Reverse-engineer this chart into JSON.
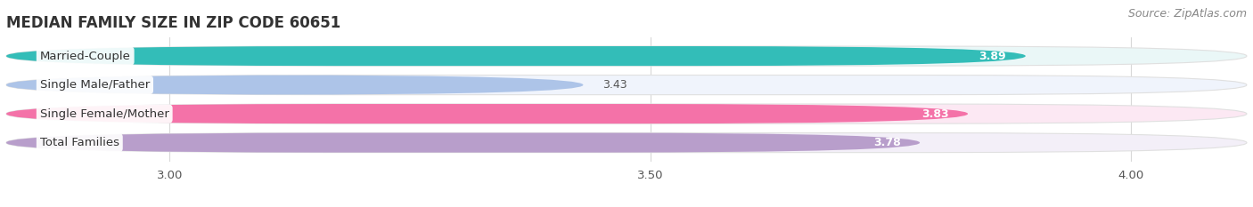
{
  "title": "MEDIAN FAMILY SIZE IN ZIP CODE 60651",
  "source": "Source: ZipAtlas.com",
  "categories": [
    "Married-Couple",
    "Single Male/Father",
    "Single Female/Mother",
    "Total Families"
  ],
  "values": [
    3.89,
    3.43,
    3.83,
    3.78
  ],
  "colors": [
    "#33bdb8",
    "#adc4e8",
    "#f472a8",
    "#b89ecb"
  ],
  "bar_bg_colors": [
    "#eaf7f7",
    "#f0f4fc",
    "#fce8f3",
    "#f3eff8"
  ],
  "xlim_min": 2.83,
  "xlim_max": 4.12,
  "xticks": [
    3.0,
    3.5,
    4.0
  ],
  "xtick_labels": [
    "3.00",
    "3.50",
    "4.00"
  ],
  "title_fontsize": 12,
  "label_fontsize": 9.5,
  "value_fontsize": 9,
  "source_fontsize": 9,
  "bar_height": 0.68,
  "background_color": "#ffffff",
  "grid_color": "#d8d8d8",
  "label_box_color": "#ffffff",
  "value_inside_color": "#ffffff",
  "value_outside_color": "#555555"
}
